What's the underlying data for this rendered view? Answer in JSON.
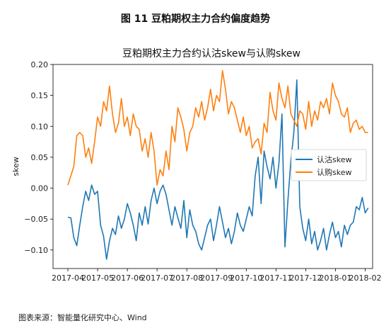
{
  "figure_caption": "图 11 豆粕期权主力合约偏度趋势",
  "source_note": "图表来源：智能量化研究中心、Wind",
  "chart_data": {
    "type": "line",
    "title": "豆粕期权主力合约认沽skew与认购skew",
    "xlabel": "",
    "ylabel": "skew",
    "ylim": [
      -0.13,
      0.2
    ],
    "yticks": [
      0.2,
      0.15,
      0.1,
      0.05,
      0.0,
      -0.05,
      -0.1
    ],
    "ytick_labels": [
      "0.20",
      "0.15",
      "0.10",
      "0.05",
      "0.00",
      "−0.05",
      "−0.10"
    ],
    "xticks": [
      "2017-04",
      "2017-05",
      "2017-06",
      "2017-07",
      "2017-08",
      "2017-09",
      "2017-10",
      "2017-11",
      "2017-12",
      "2018-01",
      "2018-02"
    ],
    "xlim": [
      0,
      10.25
    ],
    "legend_position": "center-right",
    "grid": false,
    "series": [
      {
        "name": "认沽skew",
        "color": "#1f77b4",
        "x": [
          0.0,
          0.1,
          0.2,
          0.3,
          0.4,
          0.5,
          0.6,
          0.7,
          0.8,
          0.9,
          1.0,
          1.1,
          1.2,
          1.3,
          1.4,
          1.5,
          1.6,
          1.7,
          1.8,
          1.9,
          2.0,
          2.1,
          2.2,
          2.3,
          2.4,
          2.5,
          2.6,
          2.7,
          2.8,
          2.9,
          3.0,
          3.1,
          3.2,
          3.3,
          3.4,
          3.5,
          3.6,
          3.7,
          3.8,
          3.9,
          4.0,
          4.1,
          4.2,
          4.3,
          4.4,
          4.5,
          4.6,
          4.7,
          4.8,
          4.9,
          5.0,
          5.1,
          5.2,
          5.3,
          5.4,
          5.5,
          5.6,
          5.7,
          5.8,
          5.9,
          6.0,
          6.1,
          6.2,
          6.3,
          6.4,
          6.5,
          6.6,
          6.7,
          6.8,
          6.9,
          7.0,
          7.1,
          7.2,
          7.3,
          7.4,
          7.5,
          7.6,
          7.7,
          7.8,
          7.9,
          8.0,
          8.1,
          8.2,
          8.3,
          8.4,
          8.5,
          8.6,
          8.7,
          8.8,
          8.9,
          9.0,
          9.1,
          9.2,
          9.3,
          9.4,
          9.5,
          9.6,
          9.7,
          9.8,
          9.9,
          10.0,
          10.1
        ],
        "values": [
          -0.047,
          -0.048,
          -0.08,
          -0.093,
          -0.06,
          -0.03,
          -0.005,
          -0.02,
          0.005,
          -0.01,
          -0.005,
          -0.06,
          -0.078,
          -0.115,
          -0.085,
          -0.065,
          -0.075,
          -0.045,
          -0.065,
          -0.05,
          -0.025,
          -0.04,
          -0.06,
          -0.085,
          -0.04,
          -0.06,
          -0.03,
          -0.058,
          -0.02,
          0.0,
          -0.025,
          -0.005,
          0.005,
          -0.01,
          -0.035,
          -0.06,
          -0.03,
          -0.048,
          -0.065,
          -0.02,
          -0.08,
          -0.035,
          -0.06,
          -0.07,
          -0.09,
          -0.1,
          -0.08,
          -0.06,
          -0.05,
          -0.085,
          -0.06,
          -0.03,
          -0.055,
          -0.08,
          -0.065,
          -0.09,
          -0.07,
          -0.04,
          -0.06,
          -0.07,
          -0.05,
          -0.03,
          -0.045,
          0.02,
          0.05,
          -0.025,
          0.06,
          0.035,
          0.015,
          0.05,
          0.0,
          0.04,
          0.12,
          -0.095,
          -0.02,
          0.045,
          0.09,
          0.175,
          -0.03,
          -0.065,
          -0.085,
          -0.05,
          -0.09,
          -0.07,
          -0.1,
          -0.085,
          -0.065,
          -0.1,
          -0.075,
          -0.055,
          -0.08,
          -0.07,
          -0.095,
          -0.06,
          -0.075,
          -0.06,
          -0.055,
          -0.03,
          -0.035,
          -0.015,
          -0.04,
          -0.032
        ]
      },
      {
        "name": "认购skew",
        "color": "#ff7f0e",
        "x": [
          0.0,
          0.1,
          0.2,
          0.3,
          0.4,
          0.5,
          0.6,
          0.7,
          0.8,
          0.9,
          1.0,
          1.1,
          1.2,
          1.3,
          1.4,
          1.5,
          1.6,
          1.7,
          1.8,
          1.9,
          2.0,
          2.1,
          2.2,
          2.3,
          2.4,
          2.5,
          2.6,
          2.7,
          2.8,
          2.9,
          3.0,
          3.1,
          3.2,
          3.3,
          3.4,
          3.5,
          3.6,
          3.7,
          3.8,
          3.9,
          4.0,
          4.1,
          4.2,
          4.3,
          4.4,
          4.5,
          4.6,
          4.7,
          4.8,
          4.9,
          5.0,
          5.1,
          5.2,
          5.3,
          5.4,
          5.5,
          5.6,
          5.7,
          5.8,
          5.9,
          6.0,
          6.1,
          6.2,
          6.3,
          6.4,
          6.5,
          6.6,
          6.7,
          6.8,
          6.9,
          7.0,
          7.1,
          7.2,
          7.3,
          7.4,
          7.5,
          7.6,
          7.7,
          7.8,
          7.9,
          8.0,
          8.1,
          8.2,
          8.3,
          8.4,
          8.5,
          8.6,
          8.7,
          8.8,
          8.9,
          9.0,
          9.1,
          9.2,
          9.3,
          9.4,
          9.5,
          9.6,
          9.7,
          9.8,
          9.9,
          10.0,
          10.1
        ],
        "values": [
          0.005,
          0.02,
          0.035,
          0.085,
          0.09,
          0.085,
          0.05,
          0.065,
          0.04,
          0.075,
          0.115,
          0.1,
          0.14,
          0.125,
          0.165,
          0.12,
          0.09,
          0.105,
          0.145,
          0.1,
          0.115,
          0.085,
          0.12,
          0.1,
          0.095,
          0.06,
          0.08,
          0.05,
          0.09,
          0.06,
          0.005,
          0.03,
          0.02,
          0.06,
          0.03,
          0.1,
          0.075,
          0.13,
          0.115,
          0.095,
          0.06,
          0.09,
          0.1,
          0.13,
          0.115,
          0.14,
          0.11,
          0.13,
          0.16,
          0.125,
          0.15,
          0.14,
          0.19,
          0.16,
          0.12,
          0.14,
          0.13,
          0.11,
          0.09,
          0.115,
          0.085,
          0.1,
          0.065,
          0.075,
          0.08,
          0.055,
          0.105,
          0.09,
          0.155,
          0.125,
          0.11,
          0.17,
          0.145,
          0.13,
          0.165,
          0.12,
          0.11,
          0.1,
          0.125,
          0.12,
          0.095,
          0.14,
          0.1,
          0.125,
          0.11,
          0.14,
          0.13,
          0.145,
          0.12,
          0.17,
          0.15,
          0.14,
          0.12,
          0.115,
          0.13,
          0.09,
          0.105,
          0.11,
          0.095,
          0.1,
          0.09,
          0.09
        ]
      }
    ]
  }
}
